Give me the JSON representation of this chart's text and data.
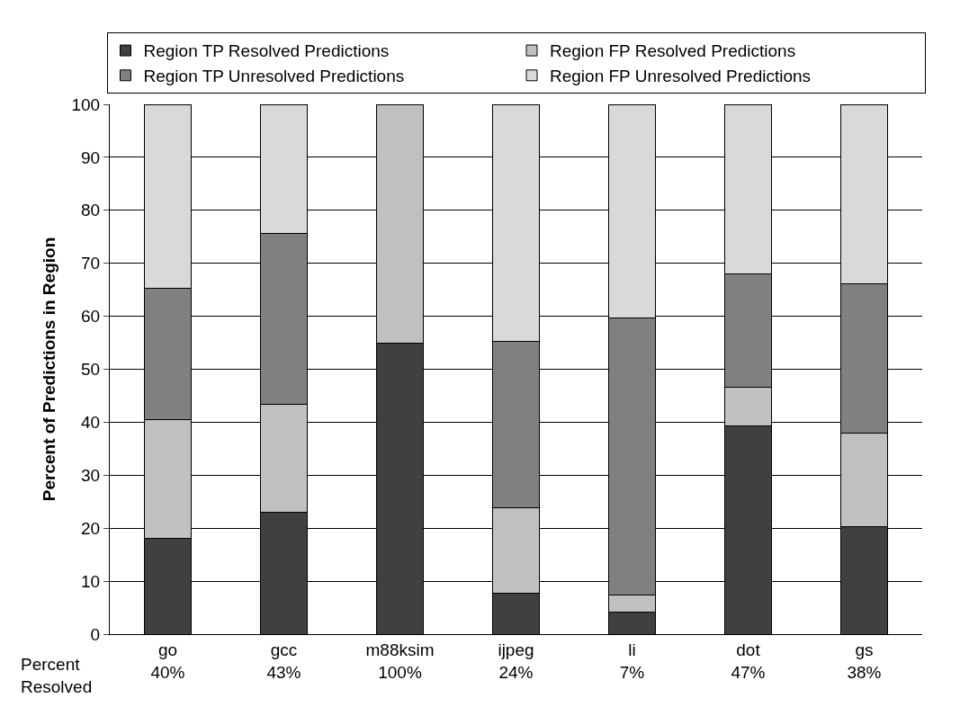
{
  "chart_data": {
    "type": "bar",
    "stacked": true,
    "ylabel": "Percent of Predictions in Region",
    "categories": [
      "go\n40%",
      "gcc\n43%",
      "m88ksim\n100%",
      "ijpeg\n24%",
      "li\n7%",
      "dot\n47%",
      "gs\n38%"
    ],
    "series": [
      {
        "name": "Region TP Resolved Predictions",
        "color": "#404040",
        "values": [
          18,
          23,
          55,
          7.8,
          4.2,
          39.3,
          20.3
        ]
      },
      {
        "name": "Region FP Resolved Predictions",
        "color": "#c0c0c0",
        "values": [
          22.5,
          20.3,
          45,
          16.1,
          3.2,
          7.3,
          17.7
        ]
      },
      {
        "name": "Region TP Unresolved Predictions",
        "color": "#808080",
        "values": [
          24.7,
          32.3,
          null,
          31.4,
          52.3,
          21.4,
          28.1
        ]
      },
      {
        "name": "Region FP Unresolved Predictions",
        "color": "#d9d9d9",
        "values": [
          34.8,
          24.4,
          null,
          44.7,
          40.3,
          32,
          33.9
        ]
      }
    ],
    "ylim": [
      0,
      100
    ],
    "yticks": [
      0,
      10,
      20,
      30,
      40,
      50,
      60,
      70,
      80,
      90,
      100
    ],
    "grid": "y",
    "legend": "top",
    "annotations": [
      "Percent\nResolved"
    ]
  }
}
